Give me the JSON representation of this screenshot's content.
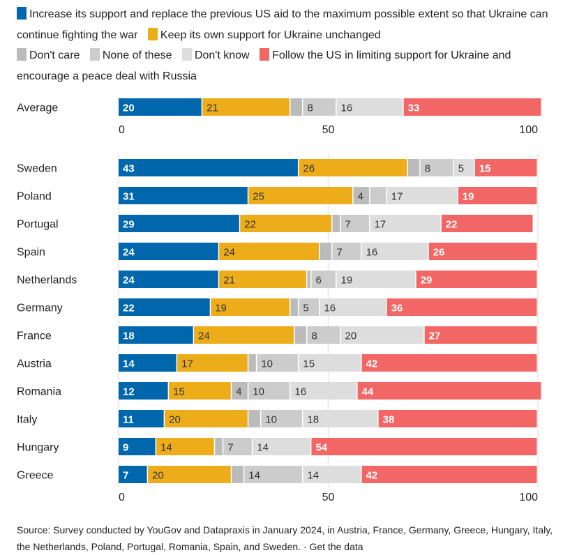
{
  "chart_data": {
    "type": "bar",
    "orientation": "horizontal",
    "stacked": true,
    "title": "",
    "xlabel": "",
    "ylabel": "",
    "xlim": [
      0,
      100
    ],
    "xticks": [
      0,
      50,
      100
    ],
    "grid": true,
    "legend_position": "top",
    "series": [
      {
        "name": "Increase its support and replace the previous US aid to the maximum possible extent so that Ukraine can continue fighting the war",
        "color": "#0067ac",
        "label_color": "#ffffff",
        "bold": true
      },
      {
        "name": "Keep its own support for Ukraine unchanged",
        "color": "#edac1a",
        "label_color": "#333333",
        "bold": false
      },
      {
        "name": "Don't care",
        "color": "#bbbbbb",
        "label_color": "#333333",
        "bold": false
      },
      {
        "name": "None of these",
        "color": "#cccccc",
        "label_color": "#333333",
        "bold": false
      },
      {
        "name": "Don't know",
        "color": "#dddddd",
        "label_color": "#333333",
        "bold": false
      },
      {
        "name": "Follow the US in limiting support for Ukraine and encourage a peace deal with Russia",
        "color": "#f26665",
        "label_color": "#ffffff",
        "bold": true
      }
    ],
    "groups": [
      {
        "name": "average",
        "rows": [
          {
            "label": "Average",
            "values": [
              20,
              21,
              3,
              8,
              16,
              33
            ],
            "labels": [
              "20",
              "21",
              "",
              "8",
              "16",
              "33"
            ]
          }
        ]
      },
      {
        "name": "countries",
        "rows": [
          {
            "label": "Sweden",
            "values": [
              43,
              26,
              3,
              8,
              5,
              15
            ],
            "labels": [
              "43",
              "26",
              "",
              "8",
              "5",
              "15"
            ]
          },
          {
            "label": "Poland",
            "values": [
              31,
              25,
              4,
              4,
              17,
              19
            ],
            "labels": [
              "31",
              "25",
              "4",
              "",
              "17",
              "19"
            ]
          },
          {
            "label": "Portugal",
            "values": [
              29,
              22,
              2,
              7,
              17,
              22
            ],
            "labels": [
              "29",
              "22",
              "",
              "7",
              "17",
              "22"
            ]
          },
          {
            "label": "Spain",
            "values": [
              24,
              24,
              3,
              7,
              16,
              26
            ],
            "labels": [
              "24",
              "24",
              "",
              "7",
              "16",
              "26"
            ]
          },
          {
            "label": "Netherlands",
            "values": [
              24,
              21,
              1,
              6,
              19,
              29
            ],
            "labels": [
              "24",
              "21",
              "",
              "6",
              "19",
              "29"
            ]
          },
          {
            "label": "Germany",
            "values": [
              22,
              19,
              2,
              5,
              16,
              36
            ],
            "labels": [
              "22",
              "19",
              "",
              "5",
              "16",
              "36"
            ]
          },
          {
            "label": "France",
            "values": [
              18,
              24,
              3,
              8,
              20,
              27
            ],
            "labels": [
              "18",
              "24",
              "",
              "8",
              "20",
              "27"
            ]
          },
          {
            "label": "Austria",
            "values": [
              14,
              17,
              2,
              10,
              15,
              42
            ],
            "labels": [
              "14",
              "17",
              "",
              "10",
              "15",
              "42"
            ]
          },
          {
            "label": "Romania",
            "values": [
              12,
              15,
              4,
              10,
              16,
              44
            ],
            "labels": [
              "12",
              "15",
              "4",
              "10",
              "16",
              "44"
            ]
          },
          {
            "label": "Italy",
            "values": [
              11,
              20,
              3,
              10,
              18,
              38
            ],
            "labels": [
              "11",
              "20",
              "",
              "10",
              "18",
              "38"
            ]
          },
          {
            "label": "Hungary",
            "values": [
              9,
              14,
              2,
              7,
              14,
              54
            ],
            "labels": [
              "9",
              "14",
              "",
              "7",
              "14",
              "54"
            ]
          },
          {
            "label": "Greece",
            "values": [
              7,
              20,
              3,
              14,
              14,
              42
            ],
            "labels": [
              "7",
              "20",
              "",
              "14",
              "14",
              "42"
            ]
          }
        ]
      }
    ]
  },
  "legend": [
    {
      "label": "Increase its support and replace the previous US aid to the maximum possible extent so that Ukraine can continue fighting the war",
      "color": "#0067ac"
    },
    {
      "label": "Keep its own support for Ukraine unchanged",
      "color": "#edac1a"
    },
    {
      "label": "Don't care",
      "color": "#bbbbbb"
    },
    {
      "label": "None of these",
      "color": "#cccccc"
    },
    {
      "label": "Don't know",
      "color": "#dddddd"
    },
    {
      "label": "Follow the US in limiting support for Ukraine and encourage a peace deal with Russia",
      "color": "#f26665"
    }
  ],
  "footer": {
    "source": "Source: Survey conducted by YouGov and Datapraxis in January 2024, in Austria, France, Germany, Greece, Hungary, Italy, the Netherlands, Poland, Portugal, Romania, Spain, and Sweden.",
    "separator": " · ",
    "link": "Get the data"
  }
}
